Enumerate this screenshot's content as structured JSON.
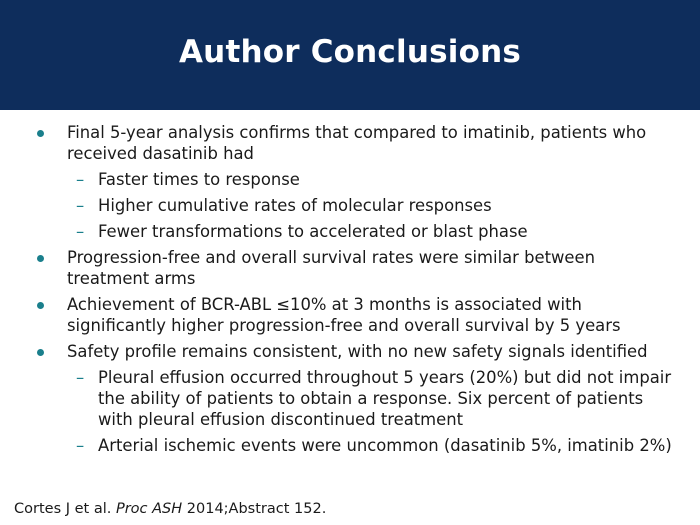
{
  "slide": {
    "title": "Author Conclusions",
    "colors": {
      "header_bg": "#0e2d5c",
      "bullet": "#1a7f8c"
    },
    "bullets": [
      {
        "text": "Final 5-year analysis confirms that compared to imatinib, patients who received dasatinib had",
        "subs": [
          "Faster times to response",
          "Higher cumulative rates of molecular responses",
          "Fewer transformations to accelerated or blast phase"
        ]
      },
      {
        "text": "Progression-free and overall survival rates were similar between treatment arms"
      },
      {
        "text": "Achievement of BCR-ABL ≤10% at 3 months is associated with significantly higher progression-free and overall survival by 5 years"
      },
      {
        "text": "Safety profile remains consistent, with no new safety signals identified",
        "subs": [
          "Pleural effusion occurred throughout 5 years (20%) but did not impair the ability of patients to obtain a response. Six percent of patients with pleural effusion discontinued treatment",
          "Arterial ischemic events were uncommon (dasatinib 5%, imatinib 2%)"
        ]
      }
    ],
    "citation": {
      "authors": "Cortes J et al.",
      "journal": "Proc ASH",
      "rest": "2014;Abstract 152."
    }
  },
  "icons": {
    "bullet": "filled-circle",
    "sub_bullet": "en-dash"
  }
}
